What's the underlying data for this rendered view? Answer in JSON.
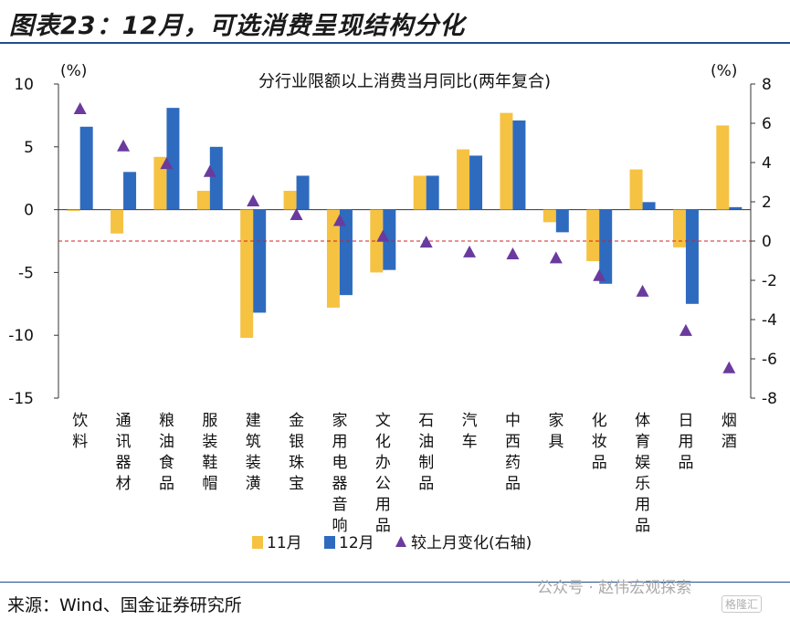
{
  "header": {
    "title": "图表23：12月，可选消费呈现结构分化"
  },
  "footer": {
    "source": "来源：Wind、国金证券研究所",
    "watermark": "公众号 · 赵伟宏观探索",
    "badge": "格隆汇"
  },
  "chart_data": {
    "type": "bar",
    "title": "分行业限额以上消费当月同比(两年复合)",
    "left_unit": "(%)",
    "right_unit": "(%)",
    "ylim": [
      -15,
      10
    ],
    "y_ticks": [
      10,
      5,
      0,
      -5,
      -10,
      -15
    ],
    "y2lim": [
      -8,
      8
    ],
    "y2_ticks": [
      8,
      6,
      4,
      2,
      0,
      -2,
      -4,
      -6,
      -8
    ],
    "categories": [
      "饮料",
      "通讯器材",
      "粮油食品",
      "服装鞋帽",
      "建筑装潢",
      "金银珠宝",
      "家用电器音响",
      "文化办公用品",
      "石油制品",
      "汽车",
      "中西药品",
      "家具",
      "化妆品",
      "体育娱乐用品",
      "日用品",
      "烟酒"
    ],
    "series": [
      {
        "name": "11月",
        "type": "bar",
        "axis": "left",
        "color": "#f5c242",
        "values": [
          -0.1,
          -1.9,
          4.2,
          1.5,
          -10.2,
          1.5,
          -7.8,
          -5.0,
          2.7,
          4.8,
          7.7,
          -1.0,
          -4.1,
          3.2,
          -3.0,
          6.7
        ]
      },
      {
        "name": "12月",
        "type": "bar",
        "axis": "left",
        "color": "#2e6bbf",
        "values": [
          6.6,
          3.0,
          8.1,
          5.0,
          -8.2,
          2.7,
          -6.8,
          -4.8,
          2.7,
          4.3,
          7.1,
          -1.8,
          -5.9,
          0.6,
          -7.5,
          0.2
        ]
      },
      {
        "name": "较上月变化(右轴)",
        "type": "scatter",
        "axis": "right",
        "marker": "triangle",
        "color": "#6a3a9e",
        "values": [
          6.7,
          4.8,
          3.9,
          3.5,
          2.0,
          1.3,
          1.0,
          0.2,
          -0.1,
          -0.6,
          -0.7,
          -0.9,
          -1.8,
          -2.6,
          -4.6,
          -6.5
        ]
      }
    ],
    "reference_line": {
      "axis": "right",
      "value": 0,
      "color": "#d22222",
      "style": "dashed"
    },
    "legend_position": "bottom"
  }
}
